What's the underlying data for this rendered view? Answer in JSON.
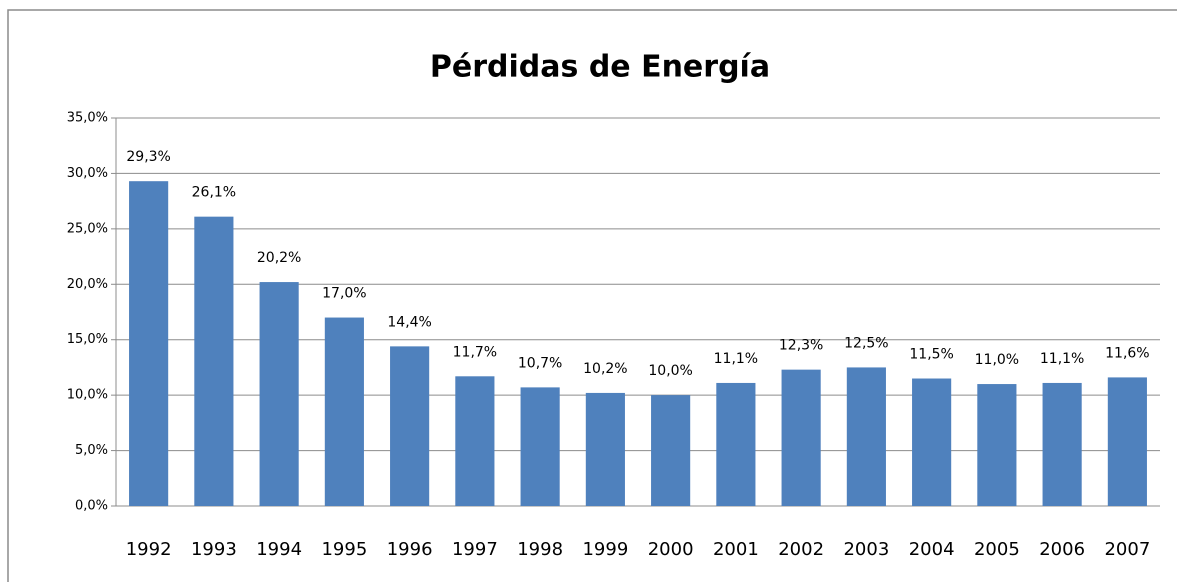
{
  "chart_data": {
    "type": "bar",
    "title": "Pérdidas de Energía",
    "categories": [
      "1992",
      "1993",
      "1994",
      "1995",
      "1996",
      "1997",
      "1998",
      "1999",
      "2000",
      "2001",
      "2002",
      "2003",
      "2004",
      "2005",
      "2006",
      "2007"
    ],
    "values": [
      29.3,
      26.1,
      20.2,
      17.0,
      14.4,
      11.7,
      10.7,
      10.2,
      10.0,
      11.1,
      12.3,
      12.5,
      11.5,
      11.0,
      11.1,
      11.6
    ],
    "value_labels": [
      "29,3%",
      "26,1%",
      "20,2%",
      "17,0%",
      "14,4%",
      "11,7%",
      "10,7%",
      "10,2%",
      "10,0%",
      "11,1%",
      "12,3%",
      "12,5%",
      "11,5%",
      "11,0%",
      "11,1%",
      "11,6%"
    ],
    "color": "#4f81bd",
    "ylim": [
      0,
      35
    ],
    "yticks": [
      {
        "value": 0,
        "label": "0,0%"
      },
      {
        "value": 5,
        "label": "5,0%"
      },
      {
        "value": 10,
        "label": "10,0%"
      },
      {
        "value": 15,
        "label": "15,0%"
      },
      {
        "value": 20,
        "label": "20,0%"
      },
      {
        "value": 25,
        "label": "25,0%"
      },
      {
        "value": 30,
        "label": "30,0%"
      },
      {
        "value": 35,
        "label": "35,0%"
      }
    ],
    "grid": true
  }
}
